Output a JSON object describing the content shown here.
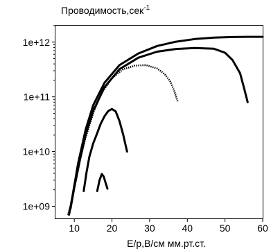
{
  "chart_data": {
    "type": "line",
    "title": "Проводимость,сек",
    "title_superscript": "-1",
    "xlabel": "E/p,В/см мм.рт.ст.",
    "ylabel": "",
    "xlim": [
      5,
      60
    ],
    "ylim": [
      600000000,
      2000000000000
    ],
    "yscale": "log",
    "grid": false,
    "legend": "none",
    "x_ticks": [
      10,
      20,
      30,
      40,
      50,
      60
    ],
    "x_tick_labels": [
      "10",
      "20",
      "30",
      "40",
      "50",
      "60"
    ],
    "y_ticks": [
      1000000000,
      10000000000,
      100000000000,
      1000000000000
    ],
    "y_tick_labels": [
      "1e+09",
      "1e+10",
      "1e+11",
      "1e+12"
    ],
    "colors": {
      "line": "#000000",
      "background": "#ffffff"
    },
    "series": [
      {
        "style": "solid",
        "x": [
          8.6,
          9.5,
          11,
          13,
          15,
          18,
          22,
          27,
          32,
          37,
          42,
          47,
          52,
          56,
          60
        ],
        "y": [
          700000000,
          1500000000,
          6000000000,
          25000000000,
          70000000000,
          180000000000,
          380000000000,
          620000000000,
          850000000000,
          1020000000000,
          1140000000000,
          1210000000000,
          1240000000000,
          1250000000000,
          1250000000000
        ]
      },
      {
        "style": "solid",
        "x": [
          9,
          10,
          11.5,
          13,
          15,
          18,
          22,
          27,
          32,
          37,
          42,
          47,
          50,
          52,
          54,
          55,
          56
        ],
        "y": [
          900000000,
          2200000000,
          7000000000,
          20000000000,
          55000000000,
          150000000000,
          320000000000,
          520000000000,
          670000000000,
          750000000000,
          780000000000,
          760000000000,
          640000000000,
          470000000000,
          270000000000,
          150000000000,
          80000000000
        ]
      },
      {
        "style": "dotted",
        "x": [
          8.3,
          9,
          10,
          11.5,
          13,
          15,
          17,
          20,
          23,
          26,
          29,
          32,
          34,
          35.5,
          36.5,
          37.5
        ],
        "y": [
          700000000,
          1000000000,
          2500000000,
          7000000000,
          18000000000,
          50000000000,
          110000000000,
          220000000000,
          320000000000,
          370000000000,
          380000000000,
          330000000000,
          260000000000,
          190000000000,
          130000000000,
          80000000000
        ]
      },
      {
        "style": "solid",
        "x": [
          12.5,
          13.2,
          14,
          15,
          16,
          17,
          18,
          19,
          20,
          21,
          22,
          23,
          24
        ],
        "y": [
          1900000000,
          4000000000,
          8000000000,
          14000000000,
          21000000000,
          32000000000,
          44000000000,
          55000000000,
          60000000000,
          54000000000,
          36000000000,
          20000000000,
          10000000000
        ]
      },
      {
        "style": "solid",
        "x": [
          16.1,
          16.7,
          17.3,
          17.8,
          18.3,
          18.8
        ],
        "y": [
          1900000000,
          3000000000,
          3900000000,
          3500000000,
          2700000000,
          2100000000
        ]
      }
    ]
  }
}
